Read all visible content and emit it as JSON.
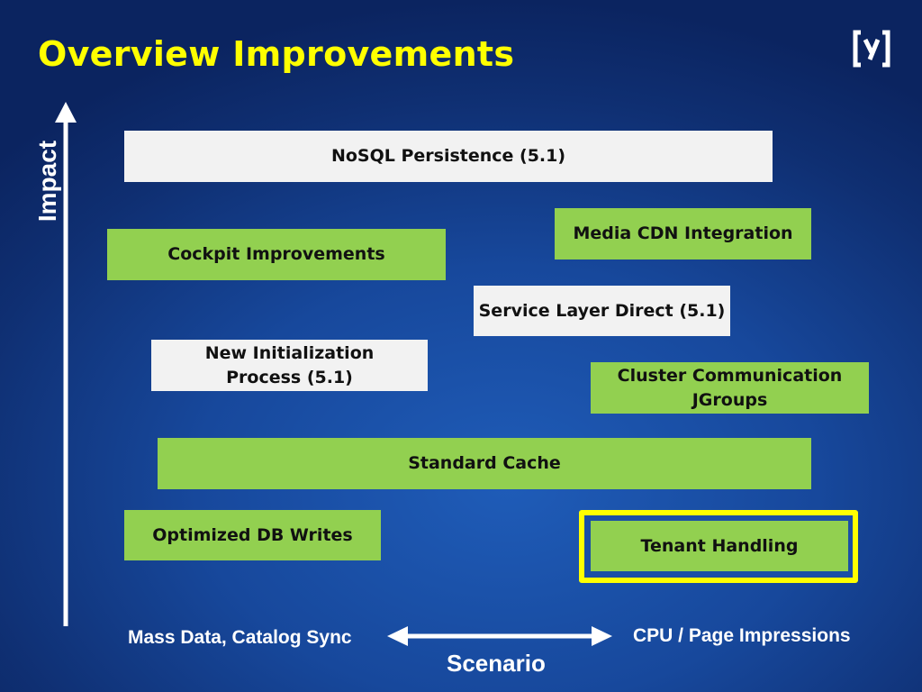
{
  "title": "Overview Improvements",
  "logo_text": "(y)",
  "axes": {
    "y_label": "Impact",
    "x_label": "Scenario",
    "x_left": "Mass Data, Catalog Sync",
    "x_right": "CPU / Page Impressions"
  },
  "items": [
    {
      "label": "NoSQL Persistence (5.1)",
      "color": "#f2f2f2"
    },
    {
      "label": "Media CDN Integration",
      "color": "#92d050"
    },
    {
      "label": "Cockpit Improvements",
      "color": "#92d050"
    },
    {
      "label": "Service Layer Direct (5.1)",
      "color": "#f2f2f2"
    },
    {
      "label": "New Initialization Process (5.1)",
      "color": "#f2f2f2"
    },
    {
      "label": "Cluster Communication JGroups",
      "color": "#92d050"
    },
    {
      "label": "Standard Cache",
      "color": "#92d050"
    },
    {
      "label": "Optimized DB Writes",
      "color": "#92d050"
    },
    {
      "label": "Tenant Handling",
      "color": "#92d050",
      "highlighted": true
    }
  ],
  "colors": {
    "title": "#ffff00",
    "highlight": "#ffff00",
    "green": "#92d050",
    "white": "#f2f2f2"
  }
}
